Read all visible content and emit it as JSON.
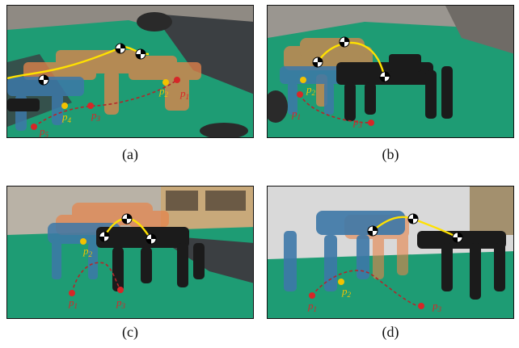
{
  "panels": [
    {
      "caption": "(a)",
      "points": [
        {
          "main": "p",
          "sub": "1",
          "color": "#d62728"
        },
        {
          "main": "p",
          "sub": "2",
          "color": "#f2c200"
        },
        {
          "main": "p",
          "sub": "3",
          "color": "#d62728"
        },
        {
          "main": "p",
          "sub": "4",
          "color": "#f2c200"
        },
        {
          "main": "p",
          "sub": "5",
          "color": "#d62728"
        }
      ]
    },
    {
      "caption": "(b)",
      "points": [
        {
          "main": "p",
          "sub": "1",
          "color": "#d62728"
        },
        {
          "main": "p",
          "sub": "2",
          "color": "#f2c200"
        },
        {
          "main": "p",
          "sub": "3",
          "color": "#d62728"
        }
      ]
    },
    {
      "caption": "(c)",
      "points": [
        {
          "main": "p",
          "sub": "1",
          "color": "#d62728"
        },
        {
          "main": "p",
          "sub": "2",
          "color": "#f2c200"
        },
        {
          "main": "p",
          "sub": "3",
          "color": "#d62728"
        }
      ]
    },
    {
      "caption": "(d)",
      "points": [
        {
          "main": "p",
          "sub": "1",
          "color": "#d62728"
        },
        {
          "main": "p",
          "sub": "2",
          "color": "#f2c200"
        },
        {
          "main": "p",
          "sub": "3",
          "color": "#d62728"
        }
      ]
    }
  ],
  "colors": {
    "mat_green": "#1e9c74",
    "mat_dark": "#3b3f42",
    "ghost_orange": "#e7844a",
    "robot_blue": "#3d78a8",
    "robot_black": "#1b1b1b",
    "trajectory": "#ffe100",
    "dashed_path": "#b3262a"
  }
}
